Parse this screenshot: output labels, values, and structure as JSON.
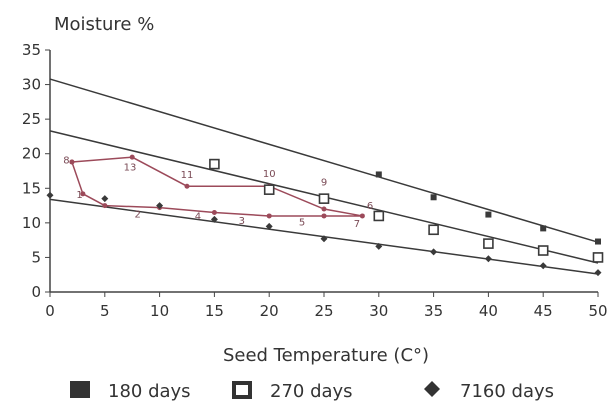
{
  "chart_data": {
    "type": "scatter",
    "title": "",
    "ylabel": "Moisture %",
    "xlabel": "Seed Temperature (C°)",
    "xlim": [
      0,
      50
    ],
    "ylim": [
      0,
      35
    ],
    "xticks": [
      0,
      5,
      10,
      15,
      20,
      25,
      30,
      35,
      40,
      45,
      50
    ],
    "yticks": [
      0,
      5,
      10,
      15,
      20,
      25,
      30,
      35
    ],
    "grid": false,
    "legend_position": "bottom",
    "lines": [
      {
        "x": [
          0,
          50
        ],
        "y": [
          30.8,
          7.2
        ],
        "color": "#3a3a3a"
      },
      {
        "x": [
          0,
          50
        ],
        "y": [
          23.3,
          4.2
        ],
        "color": "#3a3a3a"
      },
      {
        "x": [
          0,
          50
        ],
        "y": [
          13.4,
          2.6
        ],
        "color": "#3a3a3a"
      }
    ],
    "series": [
      {
        "name": "180 days",
        "marker": "square",
        "color": "#3a3a3a",
        "x": [
          30,
          35,
          40,
          45,
          50
        ],
        "y": [
          17,
          13.7,
          11.2,
          9.2,
          7.3
        ]
      },
      {
        "name": "270 days",
        "marker": "hollow-square",
        "color": "#3a3a3a",
        "x": [
          15,
          20,
          25,
          30,
          35,
          40,
          45,
          50
        ],
        "y": [
          18.5,
          14.8,
          13.5,
          11,
          9,
          7,
          6,
          5
        ]
      },
      {
        "name": "7160 days",
        "marker": "diamond",
        "color": "#3a3a3a",
        "x": [
          0,
          5,
          10,
          15,
          20,
          25,
          30,
          35,
          40,
          45,
          50
        ],
        "y": [
          14,
          13.5,
          12.5,
          10.5,
          9.5,
          7.7,
          6.6,
          5.8,
          4.8,
          3.8,
          2.8
        ]
      }
    ],
    "path": {
      "color": "#9c4a5a",
      "x": [
        2,
        7.5,
        12.5,
        20,
        25,
        28.5,
        25,
        20,
        15,
        10,
        5,
        3,
        2
      ],
      "y": [
        18.8,
        19.5,
        15.3,
        15.3,
        12,
        11,
        11,
        11,
        11.5,
        12.2,
        12.5,
        14.2,
        18.8
      ]
    },
    "annotations": [
      {
        "text": "8",
        "x": 1.5,
        "y": 18.6
      },
      {
        "text": "13",
        "x": 7.3,
        "y": 17.6
      },
      {
        "text": "11",
        "x": 12.5,
        "y": 16.5
      },
      {
        "text": "10",
        "x": 20,
        "y": 16.6
      },
      {
        "text": "9",
        "x": 25,
        "y": 15.4
      },
      {
        "text": "6",
        "x": 29.2,
        "y": 12
      },
      {
        "text": "7",
        "x": 28,
        "y": 9.4
      },
      {
        "text": "5",
        "x": 23,
        "y": 9.6
      },
      {
        "text": "3",
        "x": 17.5,
        "y": 9.8
      },
      {
        "text": "4",
        "x": 13.5,
        "y": 10.5
      },
      {
        "text": "2",
        "x": 8,
        "y": 10.8
      },
      {
        "text": "1",
        "x": 2.7,
        "y": 13.6
      }
    ]
  }
}
